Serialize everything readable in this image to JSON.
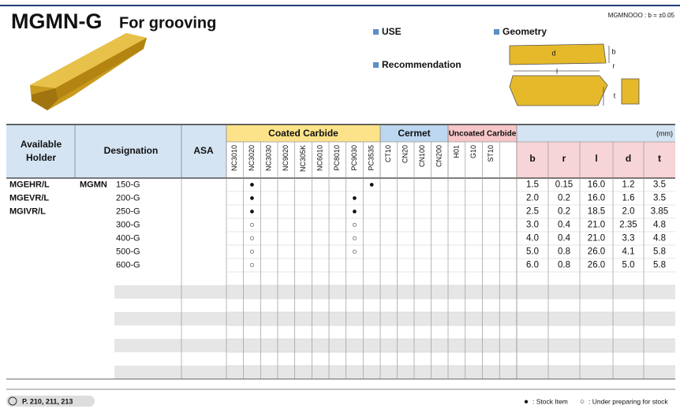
{
  "header": {
    "title": "MGMN-G",
    "subtitle": "For grooving",
    "tolerance_note": "MGMNOOO : b = ±0.05",
    "use": "USE",
    "recommendation": "Recommendation",
    "geometry": "Geometry",
    "geometry_labels": [
      "d",
      "b",
      "r",
      "l",
      "t"
    ]
  },
  "table": {
    "holder_header": [
      "Available",
      "Holder"
    ],
    "designation_header": "Designation",
    "asa_header": "ASA",
    "unit": "(mm)",
    "groups": [
      {
        "name": "Coated Carbide",
        "grades": [
          "NC3010",
          "NC3020",
          "NC3030",
          "NC9020",
          "NC305K",
          "NC6010",
          "PC8010",
          "PC9030",
          "PC3535"
        ]
      },
      {
        "name": "Cermet",
        "grades": [
          "CT10",
          "CN20",
          "CN100",
          "CN200"
        ]
      },
      {
        "name": "Uncoated Carbide",
        "grades": [
          "H01",
          "G10",
          "ST10"
        ]
      }
    ],
    "dimensions": [
      "b",
      "r",
      "l",
      "d",
      "t"
    ],
    "holders": [
      "MGEHR/L",
      "MGEVR/L",
      "MGIVR/L"
    ],
    "series": "MGMN",
    "rows": [
      {
        "designation": "150-G",
        "marks": {
          "NC3020": "●",
          "PC3535": "●"
        },
        "dims": [
          "1.5",
          "0.15",
          "16.0",
          "1.2",
          "3.5"
        ]
      },
      {
        "designation": "200-G",
        "marks": {
          "NC3020": "●",
          "PC9030": "●"
        },
        "dims": [
          "2.0",
          "0.2",
          "16.0",
          "1.6",
          "3.5"
        ]
      },
      {
        "designation": "250-G",
        "marks": {
          "NC3020": "●",
          "PC9030": "●"
        },
        "dims": [
          "2.5",
          "0.2",
          "18.5",
          "2.0",
          "3.85"
        ]
      },
      {
        "designation": "300-G",
        "marks": {
          "NC3020": "○",
          "PC9030": "○"
        },
        "dims": [
          "3.0",
          "0.4",
          "21.0",
          "2.35",
          "4.8"
        ]
      },
      {
        "designation": "400-G",
        "marks": {
          "NC3020": "○",
          "PC9030": "○"
        },
        "dims": [
          "4.0",
          "0.4",
          "21.0",
          "3.3",
          "4.8"
        ]
      },
      {
        "designation": "500-G",
        "marks": {
          "NC3020": "○",
          "PC9030": "○"
        },
        "dims": [
          "5.0",
          "0.8",
          "26.0",
          "4.1",
          "5.8"
        ]
      },
      {
        "designation": "600-G",
        "marks": {
          "NC3020": "○"
        },
        "dims": [
          "6.0",
          "0.8",
          "26.0",
          "5.0",
          "5.8"
        ]
      }
    ]
  },
  "footer": {
    "pages": "P. 210, 211, 213",
    "legend": [
      {
        "symbol": "●",
        "text": ": Stock Item"
      },
      {
        "symbol": "○",
        "text": ": Under preparing for stock"
      }
    ]
  }
}
